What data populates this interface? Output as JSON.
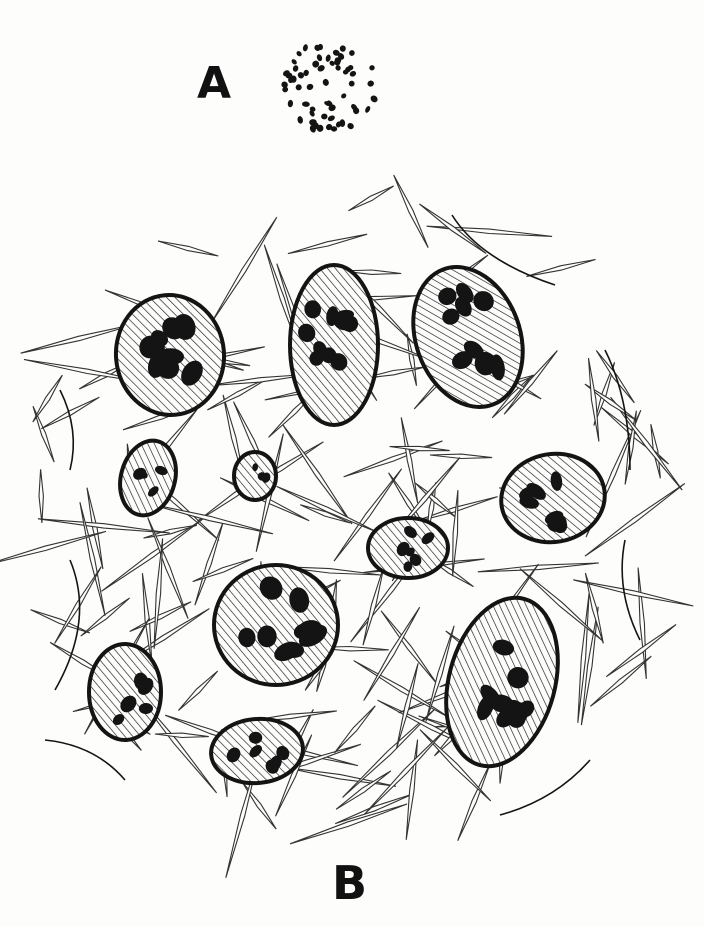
{
  "figure": {
    "label_a": "A",
    "label_b": "B"
  },
  "colors": {
    "ink": "#141414",
    "paper": "#fdfdfb",
    "spicule": "#333333"
  }
}
